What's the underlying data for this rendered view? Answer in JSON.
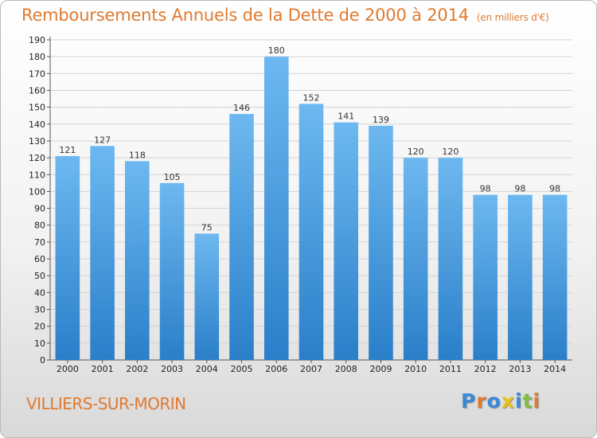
{
  "title": "Remboursements Annuels de la Dette de 2000 à 2014",
  "subtitle": "(en milliers d'€)",
  "commune": "VILLIERS-SUR-MORIN",
  "brand": "Proxiti",
  "colors": {
    "accent": "#e07a30",
    "bar_top": "#6db8f0",
    "bar_bottom": "#2a7fc9",
    "brand_letters": [
      "#3a8ad6",
      "#e07a30",
      "#3a8ad6",
      "#e7c21c",
      "#3a8ad6",
      "#7fbf3f",
      "#e07a30"
    ]
  },
  "chart_data": {
    "type": "bar",
    "categories": [
      "2000",
      "2001",
      "2002",
      "2003",
      "2004",
      "2005",
      "2006",
      "2007",
      "2008",
      "2009",
      "2010",
      "2011",
      "2012",
      "2013",
      "2014"
    ],
    "values": [
      121,
      127,
      118,
      105,
      75,
      146,
      180,
      152,
      141,
      139,
      120,
      120,
      98,
      98,
      98
    ],
    "title": "Remboursements Annuels de la Dette de 2000 à 2014",
    "ylabel": "",
    "xlabel": "",
    "ylim": [
      0,
      190
    ],
    "yticks": [
      0,
      10,
      20,
      30,
      40,
      50,
      60,
      70,
      80,
      90,
      100,
      110,
      120,
      130,
      140,
      150,
      160,
      170,
      180,
      190
    ],
    "grid": true
  }
}
